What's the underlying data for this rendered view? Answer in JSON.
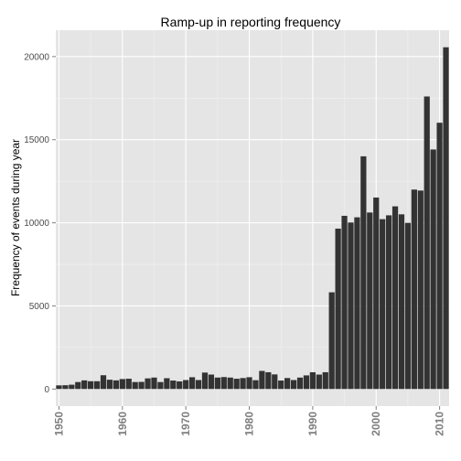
{
  "chart_data": {
    "type": "bar",
    "title": "Ramp-up in reporting frequency",
    "xlabel": "",
    "ylabel": "Frequency of events during year",
    "x": [
      1950,
      1951,
      1952,
      1953,
      1954,
      1955,
      1956,
      1957,
      1958,
      1959,
      1960,
      1961,
      1962,
      1963,
      1964,
      1965,
      1966,
      1967,
      1968,
      1969,
      1970,
      1971,
      1972,
      1973,
      1974,
      1975,
      1976,
      1977,
      1978,
      1979,
      1980,
      1981,
      1982,
      1983,
      1984,
      1985,
      1986,
      1987,
      1988,
      1989,
      1990,
      1991,
      1992,
      1993,
      1994,
      1995,
      1996,
      1997,
      1998,
      1999,
      2000,
      2001,
      2002,
      2003,
      2004,
      2005,
      2006,
      2007,
      2008,
      2009,
      2010,
      2011
    ],
    "values": [
      220,
      230,
      260,
      420,
      520,
      470,
      470,
      830,
      560,
      520,
      600,
      620,
      420,
      430,
      640,
      690,
      420,
      650,
      510,
      460,
      540,
      710,
      540,
      990,
      870,
      690,
      720,
      690,
      620,
      660,
      710,
      530,
      1090,
      1010,
      880,
      510,
      660,
      540,
      690,
      820,
      1010,
      870,
      1010,
      5820,
      9650,
      10420,
      10020,
      10330,
      14000,
      10620,
      11520,
      10220,
      10450,
      10990,
      10510,
      10000,
      12000,
      11940,
      17600,
      14410,
      16020,
      20560
    ],
    "xlim": [
      1949.5,
      2011.5
    ],
    "ylim": [
      -1028,
      21588
    ],
    "y_ticks": [
      0,
      5000,
      10000,
      15000,
      20000
    ],
    "x_ticks": [
      1950,
      1960,
      1970,
      1980,
      1990,
      2000,
      2010
    ],
    "grid": true,
    "legend": "none",
    "colors": {
      "bar": "#333333",
      "panel": "#e5e5e5",
      "grid_major": "#ffffff",
      "grid_minor": "#f2f2f2"
    }
  }
}
